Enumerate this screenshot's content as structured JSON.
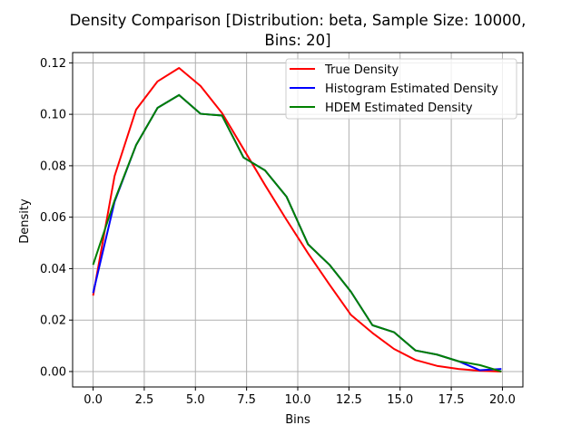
{
  "chart_data": {
    "type": "line",
    "title_lines": [
      "Density Comparison [Distribution: beta, Sample Size: 10000,",
      "Bins: 20]"
    ],
    "xlabel": "Bins",
    "ylabel": "Density",
    "xlim": [
      -1.0,
      21.0
    ],
    "ylim": [
      -0.006,
      0.124
    ],
    "xticks": [
      0.0,
      2.5,
      5.0,
      7.5,
      10.0,
      12.5,
      15.0,
      17.5,
      20.0
    ],
    "xtick_labels": [
      "0.0",
      "2.5",
      "5.0",
      "7.5",
      "10.0",
      "12.5",
      "15.0",
      "17.5",
      "20.0"
    ],
    "yticks": [
      0.0,
      0.02,
      0.04,
      0.06,
      0.08,
      0.1,
      0.12
    ],
    "ytick_labels": [
      "0.00",
      "0.02",
      "0.04",
      "0.06",
      "0.08",
      "0.10",
      "0.12"
    ],
    "grid": true,
    "legend_position": "top-right",
    "x": [
      0.0,
      1.05,
      2.1,
      3.15,
      4.2,
      5.25,
      6.3,
      7.35,
      8.4,
      9.45,
      10.5,
      11.55,
      12.6,
      13.65,
      14.7,
      15.75,
      16.8,
      17.85,
      18.9,
      19.95
    ],
    "series": [
      {
        "name": "True Density",
        "color": "#ff0000",
        "values": [
          0.0295,
          0.076,
          0.1018,
          0.1128,
          0.118,
          0.111,
          0.1005,
          0.0865,
          0.0725,
          0.059,
          0.046,
          0.0338,
          0.022,
          0.015,
          0.0088,
          0.0045,
          0.0022,
          0.001,
          0.0003,
          0.0
        ]
      },
      {
        "name": "Histogram Estimated Density",
        "color": "#0000ff",
        "values": [
          0.0305,
          0.066,
          0.088,
          0.1025,
          0.1075,
          0.1002,
          0.0995,
          0.0832,
          0.0782,
          0.068,
          0.0495,
          0.0415,
          0.031,
          0.018,
          0.0153,
          0.0082,
          0.0066,
          0.004,
          0.0005,
          0.001
        ]
      },
      {
        "name": "HDEM Estimated Density",
        "color": "#008000",
        "values": [
          0.0415,
          0.0665,
          0.088,
          0.1025,
          0.1075,
          0.1002,
          0.0995,
          0.0832,
          0.0782,
          0.068,
          0.0495,
          0.0415,
          0.031,
          0.018,
          0.0153,
          0.0082,
          0.0066,
          0.004,
          0.0025,
          0.0
        ]
      }
    ]
  }
}
